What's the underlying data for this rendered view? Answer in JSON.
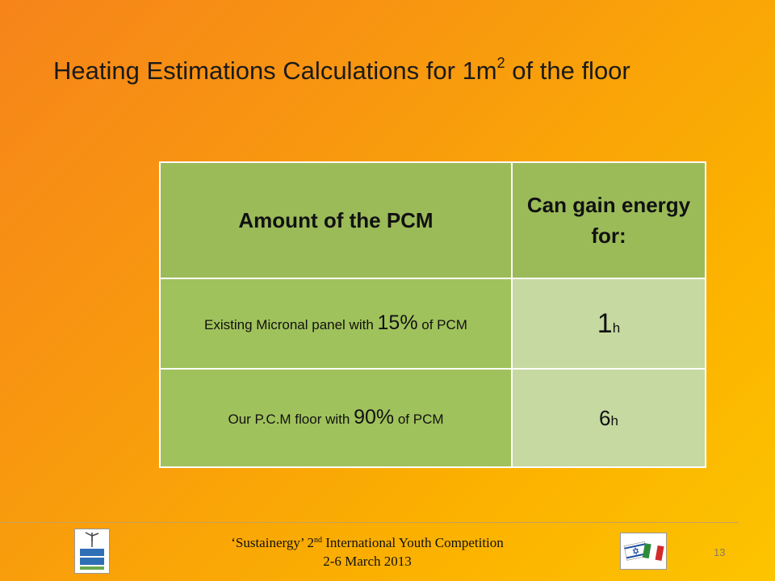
{
  "title": {
    "pre": "Heating Estimations Calculations for 1m",
    "sup": "2",
    "post": " of the floor"
  },
  "table": {
    "headers": [
      "Amount of the PCM",
      "Can gain energy for:"
    ],
    "rows": [
      {
        "desc_pre": "Existing Micronal panel with ",
        "desc_pct": "15%",
        "desc_post": " of PCM",
        "value": "1",
        "unit": "h"
      },
      {
        "desc_pre": "Our P.C.M floor with ",
        "desc_pct": "90%",
        "desc_post": " of PCM",
        "value": "6",
        "unit": "h"
      }
    ]
  },
  "footer": {
    "line1_pre": "‘Sustainergy’ 2",
    "line1_sup": "nd",
    "line1_post": " International Youth Competition",
    "line2": "2-6 March 2013",
    "page_number": "13"
  },
  "logos": {
    "left": "eilat-eilot-renewable-energy-logo",
    "right": "israel-italy-flags-logo"
  },
  "colors": {
    "header_green": "#9bbb59",
    "row_green": "#a0c25c",
    "value_green": "#c6d9a0",
    "background_start": "#f6841a",
    "background_end": "#fdc400"
  }
}
